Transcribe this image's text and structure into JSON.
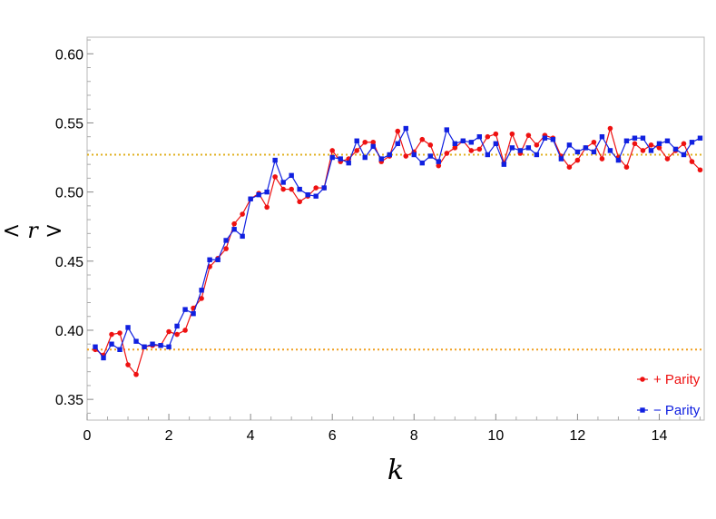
{
  "chart_data": {
    "type": "line",
    "title": "",
    "xlabel": "k",
    "ylabel": "< r >",
    "xlim": [
      0,
      15.1
    ],
    "ylim": [
      0.335,
      0.612
    ],
    "xticks": [
      0,
      2,
      4,
      6,
      8,
      10,
      12,
      14
    ],
    "yticks": [
      0.35,
      0.4,
      0.45,
      0.5,
      0.55,
      0.6
    ],
    "ytick_labels": [
      "0.35",
      "0.40",
      "0.45",
      "0.50",
      "0.55",
      "0.60"
    ],
    "reference_lines": [
      {
        "y": 0.386,
        "color": "#f0a020"
      },
      {
        "y": 0.527,
        "color": "#e0b020"
      }
    ],
    "legend_position": "bottom-right",
    "series": [
      {
        "name": "+ Parity",
        "color": "#ee1111",
        "marker": "circle",
        "x": [
          0.2,
          0.4,
          0.6,
          0.8,
          1.0,
          1.2,
          1.4,
          1.6,
          1.8,
          2.0,
          2.2,
          2.4,
          2.6,
          2.8,
          3.0,
          3.2,
          3.4,
          3.6,
          3.8,
          4.0,
          4.2,
          4.4,
          4.6,
          4.8,
          5.0,
          5.2,
          5.4,
          5.6,
          5.8,
          6.0,
          6.2,
          6.4,
          6.6,
          6.8,
          7.0,
          7.2,
          7.4,
          7.6,
          7.8,
          8.0,
          8.2,
          8.4,
          8.6,
          8.8,
          9.0,
          9.2,
          9.4,
          9.6,
          9.8,
          10.0,
          10.2,
          10.4,
          10.6,
          10.8,
          11.0,
          11.2,
          11.4,
          11.6,
          11.8,
          12.0,
          12.2,
          12.4,
          12.6,
          12.8,
          13.0,
          13.2,
          13.4,
          13.6,
          13.8,
          14.0,
          14.2,
          14.4,
          14.6,
          14.8,
          15.0
        ],
        "values": [
          0.386,
          0.382,
          0.397,
          0.398,
          0.375,
          0.368,
          0.388,
          0.389,
          0.389,
          0.399,
          0.397,
          0.4,
          0.416,
          0.423,
          0.446,
          0.452,
          0.459,
          0.477,
          0.484,
          0.495,
          0.499,
          0.489,
          0.511,
          0.502,
          0.502,
          0.493,
          0.497,
          0.503,
          0.503,
          0.53,
          0.522,
          0.524,
          0.53,
          0.536,
          0.536,
          0.522,
          0.526,
          0.544,
          0.526,
          0.529,
          0.538,
          0.534,
          0.519,
          0.528,
          0.532,
          0.537,
          0.53,
          0.531,
          0.54,
          0.542,
          0.521,
          0.542,
          0.528,
          0.541,
          0.534,
          0.541,
          0.539,
          0.526,
          0.518,
          0.523,
          0.532,
          0.536,
          0.524,
          0.546,
          0.525,
          0.518,
          0.535,
          0.53,
          0.534,
          0.532,
          0.524,
          0.53,
          0.535,
          0.522,
          0.516
        ]
      },
      {
        "name": "− Parity",
        "color": "#1020e0",
        "marker": "square",
        "x": [
          0.2,
          0.4,
          0.6,
          0.8,
          1.0,
          1.2,
          1.4,
          1.6,
          1.8,
          2.0,
          2.2,
          2.4,
          2.6,
          2.8,
          3.0,
          3.2,
          3.4,
          3.6,
          3.8,
          4.0,
          4.2,
          4.4,
          4.6,
          4.8,
          5.0,
          5.2,
          5.4,
          5.6,
          5.8,
          6.0,
          6.2,
          6.4,
          6.6,
          6.8,
          7.0,
          7.2,
          7.4,
          7.6,
          7.8,
          8.0,
          8.2,
          8.4,
          8.6,
          8.8,
          9.0,
          9.2,
          9.4,
          9.6,
          9.8,
          10.0,
          10.2,
          10.4,
          10.6,
          10.8,
          11.0,
          11.2,
          11.4,
          11.6,
          11.8,
          12.0,
          12.2,
          12.4,
          12.6,
          12.8,
          13.0,
          13.2,
          13.4,
          13.6,
          13.8,
          14.0,
          14.2,
          14.4,
          14.6,
          14.8,
          15.0
        ],
        "values": [
          0.388,
          0.38,
          0.39,
          0.386,
          0.402,
          0.392,
          0.388,
          0.39,
          0.389,
          0.388,
          0.403,
          0.415,
          0.412,
          0.429,
          0.451,
          0.451,
          0.465,
          0.473,
          0.468,
          0.495,
          0.498,
          0.5,
          0.523,
          0.507,
          0.512,
          0.502,
          0.498,
          0.497,
          0.503,
          0.525,
          0.524,
          0.521,
          0.537,
          0.525,
          0.533,
          0.524,
          0.527,
          0.535,
          0.546,
          0.527,
          0.521,
          0.526,
          0.522,
          0.545,
          0.535,
          0.537,
          0.536,
          0.54,
          0.527,
          0.535,
          0.52,
          0.532,
          0.53,
          0.532,
          0.527,
          0.539,
          0.538,
          0.524,
          0.534,
          0.529,
          0.532,
          0.529,
          0.54,
          0.53,
          0.523,
          0.537,
          0.539,
          0.539,
          0.53,
          0.535,
          0.537,
          0.531,
          0.527,
          0.536,
          0.539
        ]
      }
    ]
  }
}
